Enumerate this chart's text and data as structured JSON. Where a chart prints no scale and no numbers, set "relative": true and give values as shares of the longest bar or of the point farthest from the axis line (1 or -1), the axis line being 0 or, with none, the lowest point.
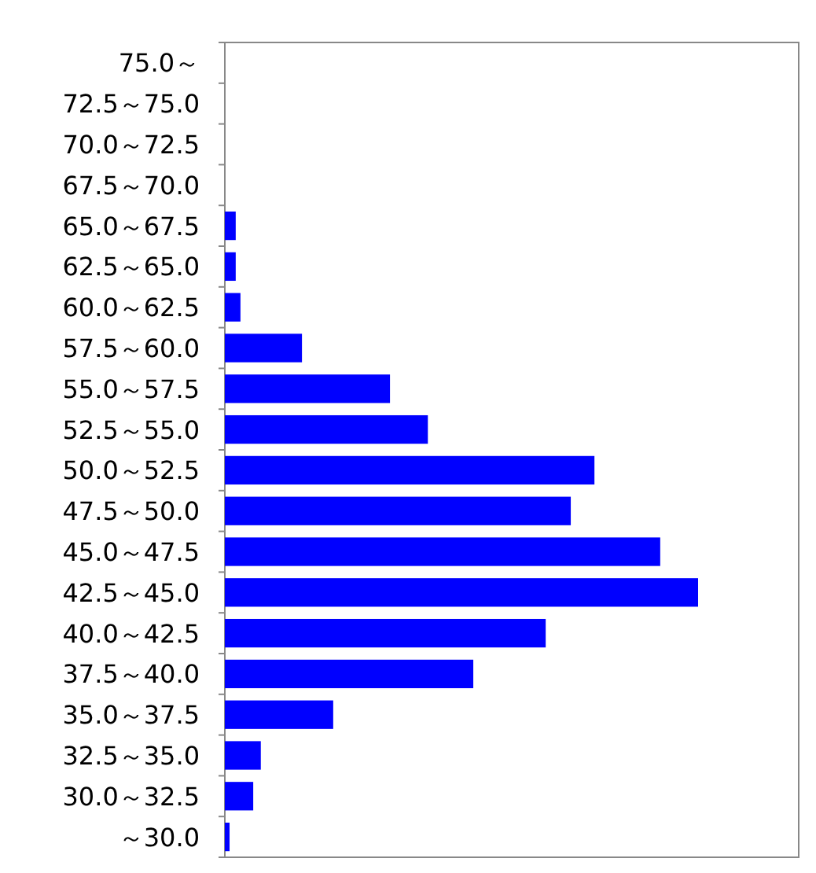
{
  "chart_data": {
    "type": "bar",
    "orientation": "horizontal",
    "relative": true,
    "color": "#0000ff",
    "categories": [
      "75.0～",
      "72.5～75.0",
      "70.0～72.5",
      "67.5～70.0",
      "65.0～67.5",
      "62.5～65.0",
      "60.0～62.5",
      "57.5～60.0",
      "55.0～57.5",
      "52.5～55.0",
      "50.0～52.5",
      "47.5～50.0",
      "45.0～47.5",
      "42.5～45.0",
      "40.0～42.5",
      "37.5～40.0",
      "35.0～37.5",
      "32.5～35.0",
      "30.0～32.5",
      "～30.0"
    ],
    "values": [
      0,
      0,
      0,
      0,
      0.023,
      0.023,
      0.033,
      0.163,
      0.349,
      0.429,
      0.781,
      0.731,
      0.92,
      1,
      0.678,
      0.525,
      0.229,
      0.076,
      0.06,
      0.01
    ],
    "grid": false
  }
}
